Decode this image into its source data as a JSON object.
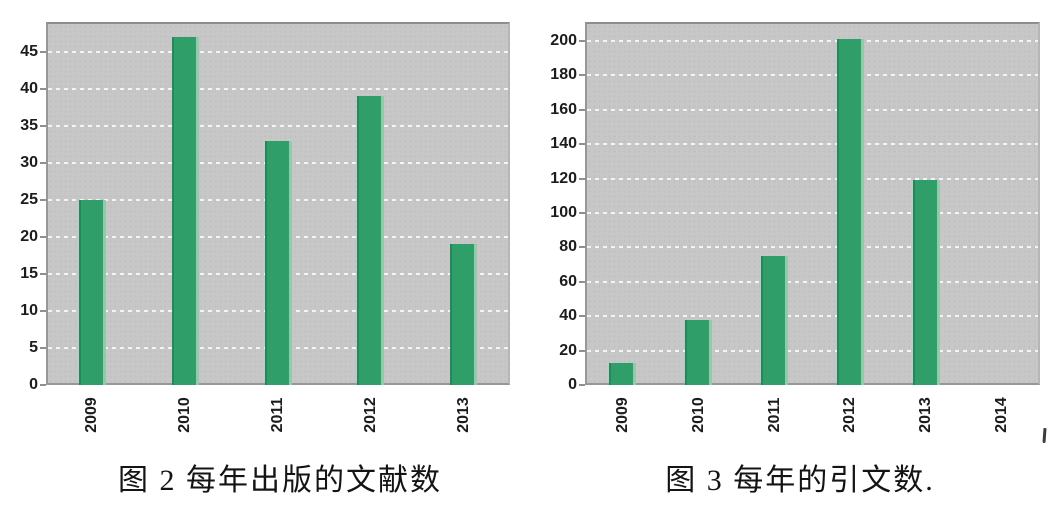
{
  "colors": {
    "bar_fill": "#2f9e68",
    "bar_edge_dark": "#27875a",
    "bar_edge_light": "#8fcdaa",
    "plot_background": "#c7c7c7",
    "gridline": "#f4f4f4",
    "plot_border": "#979797",
    "tick_label": "#1c1c1c",
    "caption_text": "#141414"
  },
  "chart_data": [
    {
      "id": "documents-per-year",
      "type": "bar",
      "title": "图 2 每年出版的文献数",
      "categories": [
        "2009",
        "2010",
        "2011",
        "2012",
        "2013"
      ],
      "values": [
        25,
        47,
        33,
        39,
        19
      ],
      "xlabel": "",
      "ylabel": "",
      "yticks": [
        0,
        5,
        10,
        15,
        20,
        25,
        30,
        35,
        40,
        45
      ],
      "ylim": [
        0,
        49
      ],
      "grid": "horizontal white dashed lines on gray plot",
      "legend": "none",
      "bar_color": "#2f9e68",
      "x_tick_rotation": 90
    },
    {
      "id": "citations-per-year",
      "type": "bar",
      "title": "图 3 每年的引文数",
      "categories": [
        "2009",
        "2010",
        "2011",
        "2012",
        "2013",
        "2014"
      ],
      "values": [
        13,
        38,
        75,
        201,
        119,
        0
      ],
      "xlabel": "",
      "ylabel": "",
      "yticks": [
        0,
        20,
        40,
        60,
        80,
        100,
        120,
        140,
        160,
        180,
        200
      ],
      "ylim": [
        0,
        211
      ],
      "grid": "horizontal white dashed lines on gray plot",
      "legend": "none",
      "bar_color": "#2f9e68",
      "x_tick_rotation": 90
    }
  ],
  "captions": {
    "figure2": "图 2 每年出版的文献数",
    "figure3": "图 3 每年的引文数."
  }
}
